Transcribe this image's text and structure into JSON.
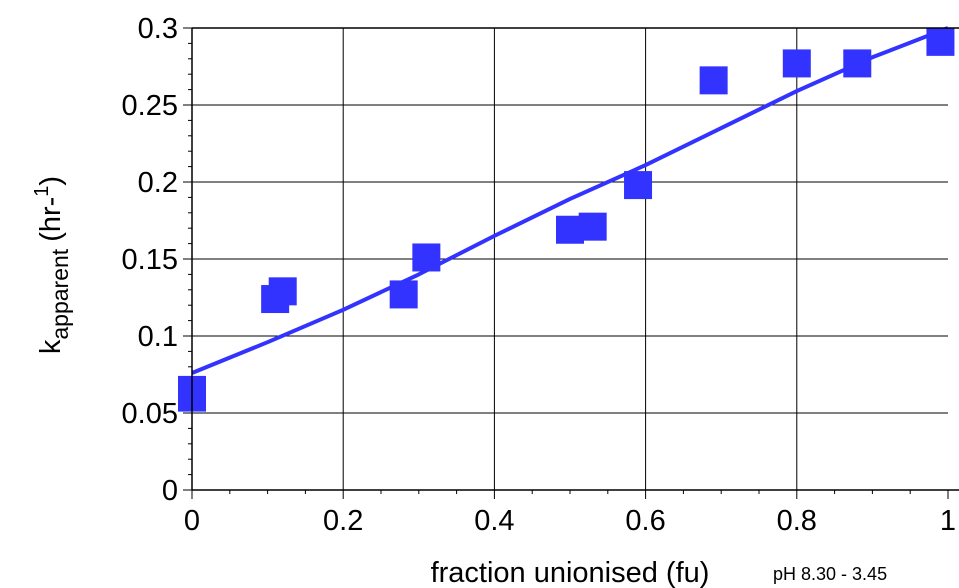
{
  "chart_data": {
    "type": "scatter",
    "title": "",
    "xlabel": "fraction unionised (fu)",
    "ylabel": {
      "main": "k",
      "subscript": "apparent",
      "unit_open": "(hr-",
      "unit_superscript": "1",
      "unit_close": ")"
    },
    "annotation": "pH 8.30 - 3.45",
    "xlim": [
      0,
      1
    ],
    "ylim": [
      0,
      0.3
    ],
    "x_ticks": [
      0,
      0.2,
      0.4,
      0.6,
      0.8,
      1
    ],
    "x_tick_labels": [
      "0",
      "0.2",
      "0.4",
      "0.6",
      "0.8",
      "1"
    ],
    "y_ticks": [
      0,
      0.05,
      0.1,
      0.15,
      0.2,
      0.25,
      0.3
    ],
    "y_tick_labels": [
      "0",
      "0.05",
      "0.1",
      "0.15",
      "0.2",
      "0.25",
      "0.3"
    ],
    "grid": true,
    "series": [
      {
        "marker": "square",
        "color": "#3333ff",
        "points": [
          {
            "x": 0.0,
            "y": 0.06
          },
          {
            "x": 0.0,
            "y": 0.065
          },
          {
            "x": 0.11,
            "y": 0.124
          },
          {
            "x": 0.12,
            "y": 0.129
          },
          {
            "x": 0.28,
            "y": 0.127
          },
          {
            "x": 0.31,
            "y": 0.151
          },
          {
            "x": 0.5,
            "y": 0.169
          },
          {
            "x": 0.53,
            "y": 0.171
          },
          {
            "x": 0.59,
            "y": 0.198
          },
          {
            "x": 0.69,
            "y": 0.266
          },
          {
            "x": 0.8,
            "y": 0.277
          },
          {
            "x": 0.88,
            "y": 0.277
          },
          {
            "x": 0.99,
            "y": 0.291
          }
        ]
      }
    ],
    "fit_line": {
      "color": "#3333ff",
      "points": [
        {
          "x": 0.0,
          "y": 0.076
        },
        {
          "x": 0.1,
          "y": 0.096
        },
        {
          "x": 0.2,
          "y": 0.117
        },
        {
          "x": 0.3,
          "y": 0.14
        },
        {
          "x": 0.4,
          "y": 0.165
        },
        {
          "x": 0.5,
          "y": 0.189
        },
        {
          "x": 0.6,
          "y": 0.211
        },
        {
          "x": 0.7,
          "y": 0.235
        },
        {
          "x": 0.8,
          "y": 0.259
        },
        {
          "x": 0.9,
          "y": 0.281
        },
        {
          "x": 1.0,
          "y": 0.3
        }
      ]
    }
  }
}
